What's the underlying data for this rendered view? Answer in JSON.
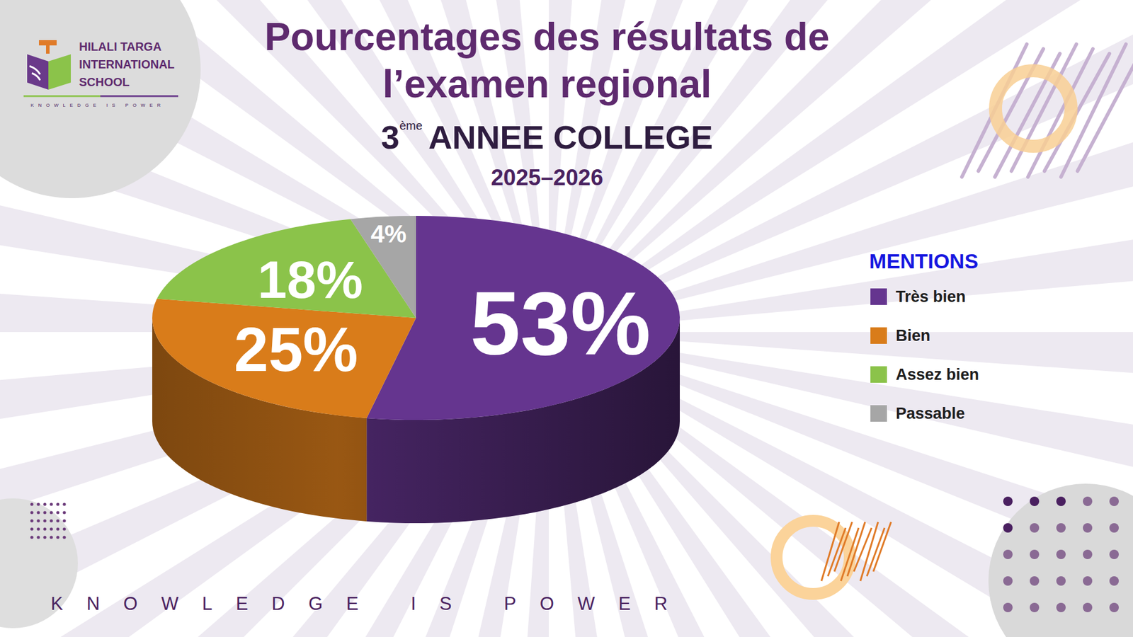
{
  "chart_data": {
    "type": "pie",
    "title": "Pourcentages des résultats de l’examen regional",
    "annotations": {
      "ordinal": "3",
      "ordinal_suffix": "ème",
      "level": "ANNEE COLLEGE",
      "year": "2025–2026",
      "school": [
        "HILALI TARGA",
        "INTERNATIONAL",
        "SCHOOL"
      ],
      "motto": "KNOWLEDGE IS POWER"
    },
    "legend_title": "MENTIONS",
    "categories": [
      "Très bien",
      "Bien",
      "Assez bien",
      "Passable"
    ],
    "values": [
      53,
      25,
      18,
      4
    ],
    "value_labels": [
      "53%",
      "25%",
      "18%",
      "4%"
    ],
    "colors": [
      "#65358f",
      "#d97c1a",
      "#8bc34a",
      "#a6a6a6"
    ],
    "data_labels": true,
    "legend": "right"
  }
}
